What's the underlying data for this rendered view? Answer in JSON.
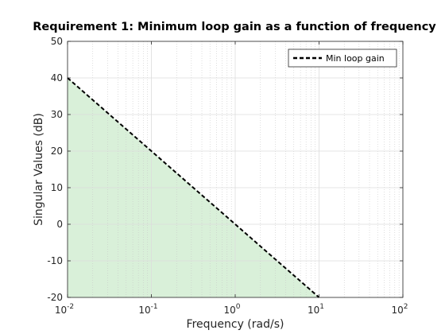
{
  "chart_data": {
    "type": "line",
    "title": "Requirement 1: Minimum loop gain as a function of frequency",
    "xlabel": "Frequency (rad/s)",
    "ylabel": "Singular Values (dB)",
    "xscale": "log",
    "xlim": [
      0.01,
      100
    ],
    "ylim": [
      -20,
      50
    ],
    "grid": true,
    "minor_grid": true,
    "legend_placement": "top-right",
    "x_ticks": [
      {
        "base": "10",
        "exp": "-2",
        "value": 0.01
      },
      {
        "base": "10",
        "exp": "-1",
        "value": 0.1
      },
      {
        "base": "10",
        "exp": "0",
        "value": 1
      },
      {
        "base": "10",
        "exp": "1",
        "value": 10
      },
      {
        "base": "10",
        "exp": "2",
        "value": 100
      }
    ],
    "y_ticks": [
      "-20",
      "-10",
      "0",
      "10",
      "20",
      "30",
      "40",
      "50"
    ],
    "series": [
      {
        "name": "Min loop gain",
        "style": "dashed",
        "color": "#000000",
        "x": [
          0.01,
          10
        ],
        "y": [
          40,
          -20
        ]
      }
    ],
    "shaded_region": {
      "color": "#d9f0d9",
      "description_bound": "below Min loop gain curve",
      "x": [
        0.01,
        10
      ],
      "y": [
        40,
        -20
      ]
    }
  }
}
